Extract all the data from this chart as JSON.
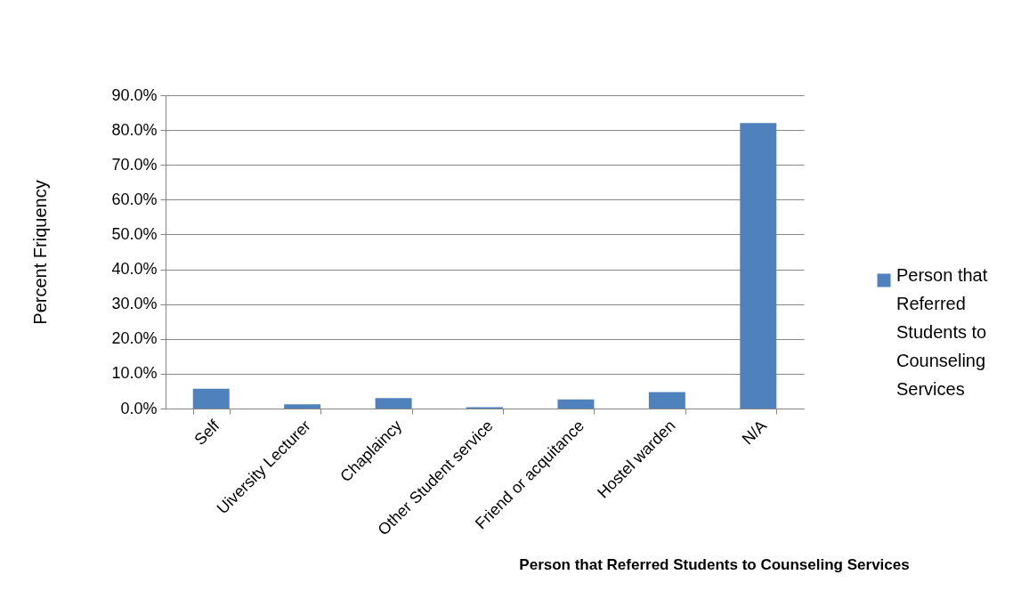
{
  "chart_data": {
    "type": "bar",
    "xlabel": "Person that Referred Students to Counseling Services",
    "ylabel": "Percent Friquency",
    "categories": [
      "Self",
      "Uiversity Lecturer",
      "Chaplaincy",
      "Other Student service",
      "Friend or acquitance",
      "Hostel warden",
      "N/A"
    ],
    "series": [
      {
        "name": "Person that Referred Students to Counseling Services",
        "color": "#4f81bd",
        "values": [
          5.7,
          1.2,
          3.0,
          0.4,
          2.6,
          4.7,
          82.0
        ]
      }
    ],
    "ylim": [
      0,
      90
    ],
    "yticks": [
      {
        "value": 0,
        "label": "0.0%"
      },
      {
        "value": 10,
        "label": "10.0%"
      },
      {
        "value": 20,
        "label": "20.0%"
      },
      {
        "value": 30,
        "label": "30.0%"
      },
      {
        "value": 40,
        "label": "40.0%"
      },
      {
        "value": 50,
        "label": "50.0%"
      },
      {
        "value": 60,
        "label": "60.0%"
      },
      {
        "value": 70,
        "label": "70.0%"
      },
      {
        "value": 80,
        "label": "80.0%"
      },
      {
        "value": 90,
        "label": "90.0%"
      }
    ],
    "grid": "y",
    "legend": "right"
  }
}
